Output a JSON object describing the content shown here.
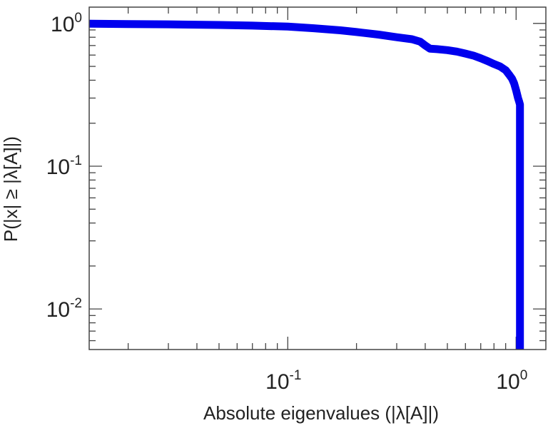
{
  "chart_data": {
    "type": "line",
    "xlabel": "Absolute eigenvalues (|λ[A]|)",
    "ylabel": "P(|x| ≥ |λ[A]|)",
    "xscale": "log",
    "yscale": "log",
    "xlim": [
      0.0135,
      1.35
    ],
    "ylim": [
      0.0052,
      1.3
    ],
    "grid": false,
    "legend": "none",
    "xticks": [
      {
        "value": 0.1,
        "base": "10",
        "exp": "-1"
      },
      {
        "value": 1,
        "base": "10",
        "exp": "0"
      }
    ],
    "yticks": [
      {
        "value": 0.01,
        "base": "10",
        "exp": "-2"
      },
      {
        "value": 0.1,
        "base": "10",
        "exp": "-1"
      },
      {
        "value": 1,
        "base": "10",
        "exp": "0"
      }
    ],
    "series": [
      {
        "color": "#0000ee",
        "x": [
          0.0135,
          0.02,
          0.03,
          0.05,
          0.07,
          0.1,
          0.13,
          0.17,
          0.2,
          0.25,
          0.3,
          0.35,
          0.38,
          0.4,
          0.42,
          0.45,
          0.5,
          0.55,
          0.6,
          0.65,
          0.7,
          0.75,
          0.8,
          0.85,
          0.9,
          0.93,
          0.96,
          0.98,
          1.0,
          1.02,
          1.03,
          1.04,
          1.04,
          1.04
        ],
        "y": [
          0.995,
          0.99,
          0.985,
          0.975,
          0.965,
          0.95,
          0.925,
          0.895,
          0.87,
          0.835,
          0.8,
          0.775,
          0.745,
          0.7,
          0.665,
          0.66,
          0.65,
          0.635,
          0.615,
          0.595,
          0.57,
          0.545,
          0.52,
          0.5,
          0.47,
          0.44,
          0.41,
          0.38,
          0.34,
          0.3,
          0.285,
          0.27,
          0.05,
          0.0052
        ]
      }
    ]
  }
}
